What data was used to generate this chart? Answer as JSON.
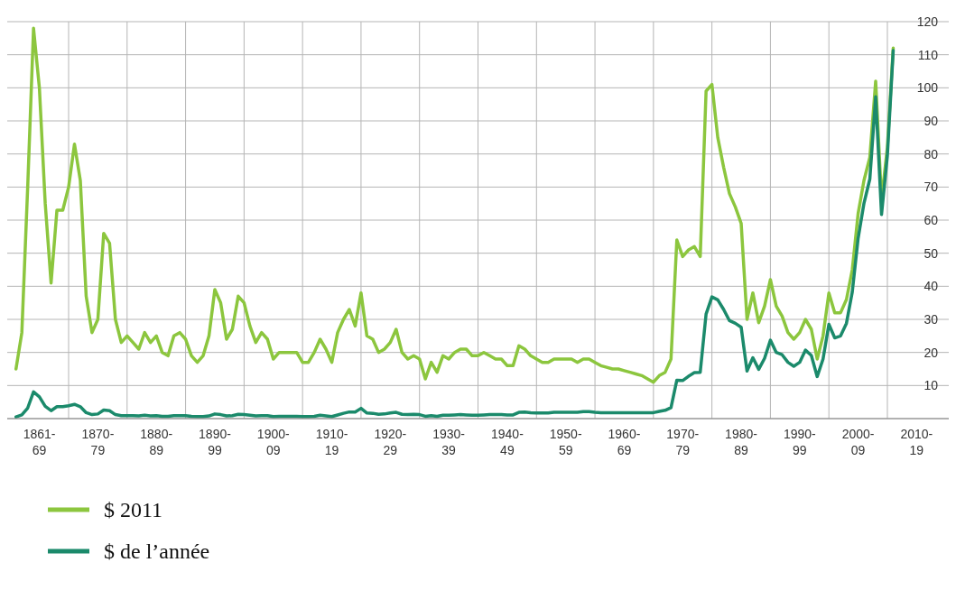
{
  "chart_data": {
    "type": "line",
    "categories": [
      null,
      null,
      null,
      null,
      "1861-69",
      null,
      null,
      null,
      null,
      null,
      null,
      null,
      null,
      null,
      "1870-79",
      null,
      null,
      null,
      null,
      null,
      null,
      null,
      null,
      null,
      "1880-89",
      null,
      null,
      null,
      null,
      null,
      null,
      null,
      null,
      null,
      "1890-99",
      null,
      null,
      null,
      null,
      null,
      null,
      null,
      null,
      null,
      "1900-09",
      null,
      null,
      null,
      null,
      null,
      null,
      null,
      null,
      null,
      "1910-19",
      null,
      null,
      null,
      null,
      null,
      null,
      null,
      null,
      null,
      "1920-29",
      null,
      null,
      null,
      null,
      null,
      null,
      null,
      null,
      null,
      "1930-39",
      null,
      null,
      null,
      null,
      null,
      null,
      null,
      null,
      null,
      "1940-49",
      null,
      null,
      null,
      null,
      null,
      null,
      null,
      null,
      null,
      "1950-59",
      null,
      null,
      null,
      null,
      null,
      null,
      null,
      null,
      null,
      "1960-69",
      null,
      null,
      null,
      null,
      null,
      null,
      null,
      null,
      null,
      "1970-79",
      null,
      null,
      null,
      null,
      null,
      null,
      null,
      null,
      null,
      "1980-89",
      null,
      null,
      null,
      null,
      null,
      null,
      null,
      null,
      null,
      "1990-99",
      null,
      null,
      null,
      null,
      null,
      null,
      null,
      null,
      null,
      "2000-09",
      null,
      null,
      null,
      null,
      null,
      null,
      null,
      null,
      null,
      "2010-19",
      null,
      null,
      null,
      null
    ],
    "series": [
      {
        "name": "$ 2011",
        "color": "#8cc63e",
        "values": [
          15,
          26,
          70,
          118,
          100,
          65,
          41,
          63,
          63,
          70,
          83,
          72,
          37,
          26,
          30,
          56,
          53,
          30,
          23,
          25,
          23,
          21,
          26,
          23,
          25,
          20,
          19,
          25,
          26,
          24,
          19,
          17,
          19,
          25,
          39,
          35,
          24,
          27,
          37,
          35,
          28,
          23,
          26,
          24,
          18,
          20,
          20,
          20,
          20,
          17,
          17,
          20,
          24,
          21,
          17,
          26,
          30,
          33,
          28,
          38,
          25,
          24,
          20,
          21,
          23,
          27,
          20,
          18,
          19,
          18,
          12,
          17,
          14,
          19,
          18,
          20,
          21,
          21,
          19,
          19,
          20,
          19,
          18,
          18,
          16,
          16,
          22,
          21,
          19,
          18,
          17,
          17,
          18,
          18,
          18,
          18,
          17,
          18,
          18,
          17,
          16,
          15.5,
          15,
          15,
          14.5,
          14,
          13.5,
          13,
          12,
          11,
          13,
          14,
          18,
          54,
          49,
          51,
          52,
          49,
          99,
          101,
          85,
          76,
          68,
          64,
          59,
          30,
          38,
          29,
          34,
          42,
          34,
          31,
          26,
          24,
          26,
          30,
          27,
          18,
          25,
          38,
          32,
          32,
          36,
          45,
          62,
          72,
          79,
          102,
          66,
          82,
          112,
          null,
          null,
          null,
          null,
          null,
          null,
          null,
          null
        ]
      },
      {
        "name": "$ de l’année",
        "color": "#1b8a6b",
        "values": [
          0.5,
          1.1,
          3.2,
          8.1,
          6.6,
          3.7,
          2.4,
          3.6,
          3.6,
          3.9,
          4.3,
          3.6,
          1.8,
          1.2,
          1.4,
          2.6,
          2.4,
          1.2,
          0.9,
          0.9,
          0.9,
          0.8,
          1.0,
          0.8,
          0.9,
          0.7,
          0.7,
          0.9,
          0.9,
          0.9,
          0.7,
          0.6,
          0.6,
          0.8,
          1.4,
          1.2,
          0.8,
          0.9,
          1.3,
          1.2,
          1.0,
          0.8,
          0.9,
          0.9,
          0.6,
          0.7,
          0.7,
          0.7,
          0.7,
          0.6,
          0.6,
          0.7,
          1.0,
          0.8,
          0.6,
          1.1,
          1.6,
          2.0,
          2.0,
          3.1,
          1.7,
          1.6,
          1.3,
          1.4,
          1.7,
          1.9,
          1.3,
          1.2,
          1.3,
          1.2,
          0.7,
          0.9,
          0.7,
          1.0,
          1.0,
          1.1,
          1.2,
          1.1,
          1.0,
          1.0,
          1.1,
          1.2,
          1.2,
          1.2,
          1.1,
          1.1,
          1.9,
          2.0,
          1.8,
          1.7,
          1.7,
          1.7,
          1.9,
          1.9,
          1.9,
          1.9,
          1.9,
          2.1,
          2.1,
          1.9,
          1.8,
          1.8,
          1.8,
          1.8,
          1.8,
          1.8,
          1.8,
          1.8,
          1.8,
          1.8,
          2.2,
          2.5,
          3.3,
          11.6,
          11.5,
          12.8,
          13.9,
          14.0,
          31.6,
          36.8,
          35.9,
          33.0,
          29.6,
          28.8,
          27.6,
          14.4,
          18.4,
          14.9,
          18.2,
          23.7,
          20.0,
          19.3,
          17.0,
          15.8,
          17.0,
          20.7,
          19.1,
          12.7,
          18.0,
          28.5,
          24.4,
          25.0,
          28.8,
          38.3,
          54.5,
          65.1,
          72.4,
          97.3,
          61.7,
          79.5,
          111.3,
          null,
          null,
          null,
          null,
          null,
          null,
          null,
          null
        ]
      }
    ],
    "ylim": [
      0,
      120
    ],
    "yticks": [
      10,
      20,
      30,
      40,
      50,
      60,
      70,
      80,
      90,
      100,
      110,
      120
    ],
    "grid": true,
    "legend": "bottom left"
  }
}
